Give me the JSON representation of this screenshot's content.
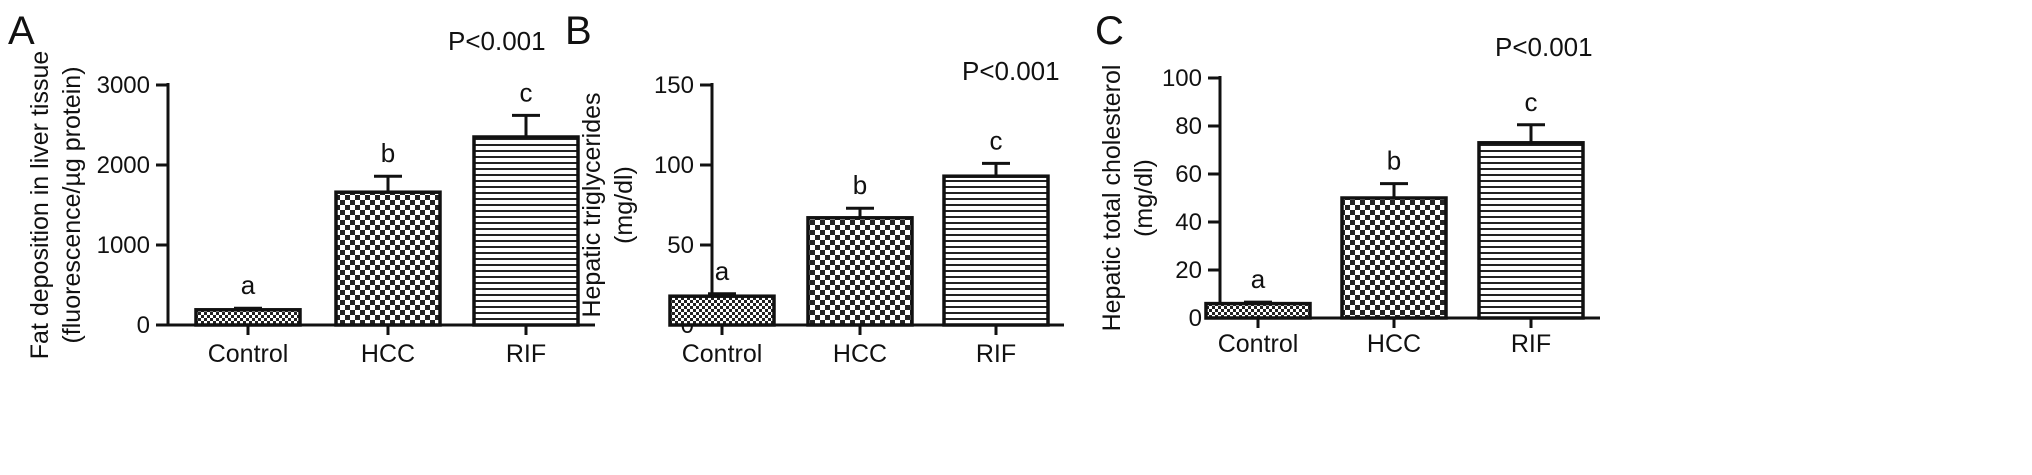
{
  "chart_data": [
    {
      "type": "bar",
      "panel": "A",
      "p_value": "P<0.001",
      "ylabel": [
        "Fat deposition in liver tissue",
        "(fluorescence/µg protein)"
      ],
      "ylim": [
        0,
        3000
      ],
      "yticks": [
        0,
        1000,
        2000,
        3000
      ],
      "categories": [
        "Control",
        "HCC",
        "RIF"
      ],
      "values": [
        190,
        1660,
        2350
      ],
      "errors": [
        20,
        200,
        270
      ],
      "significance": [
        "a",
        "b",
        "c"
      ],
      "patterns": [
        "dense-check",
        "check",
        "horizontal-lines"
      ]
    },
    {
      "type": "bar",
      "panel": "B",
      "p_value": "P<0.001",
      "ylabel": [
        "Hepatic triglycerides",
        "(mg/dl)"
      ],
      "ylim": [
        0,
        150
      ],
      "yticks": [
        0,
        50,
        100,
        150
      ],
      "categories": [
        "Control",
        "HCC",
        "RIF"
      ],
      "values": [
        18,
        67,
        93
      ],
      "errors": [
        1.5,
        6,
        8
      ],
      "significance": [
        "a",
        "b",
        "c"
      ],
      "patterns": [
        "dense-check",
        "check",
        "horizontal-lines"
      ]
    },
    {
      "type": "bar",
      "panel": "C",
      "p_value": "P<0.001",
      "ylabel": [
        "Hepatic total cholesterol",
        "(mg/dl)"
      ],
      "ylim": [
        0,
        100
      ],
      "yticks": [
        0,
        20,
        40,
        60,
        80,
        100
      ],
      "categories": [
        "Control",
        "HCC",
        "RIF"
      ],
      "values": [
        6,
        50,
        73
      ],
      "errors": [
        0.6,
        6,
        7.5
      ],
      "significance": [
        "a",
        "b",
        "c"
      ],
      "patterns": [
        "dense-check",
        "check",
        "horizontal-lines"
      ]
    }
  ]
}
